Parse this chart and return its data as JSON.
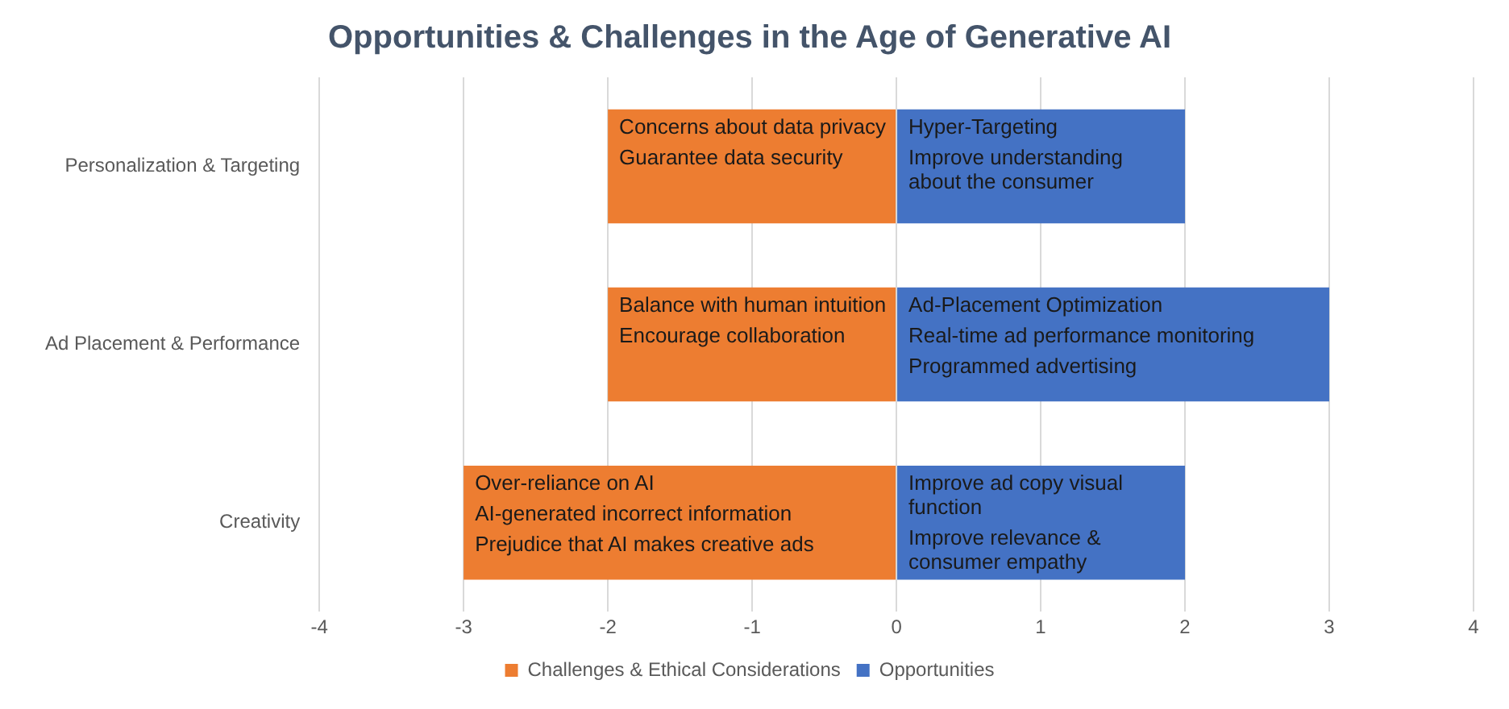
{
  "chart_data": {
    "type": "bar",
    "orientation": "horizontal",
    "stacked": true,
    "title": "Opportunities & Challenges in the Age of Generative AI",
    "categories": [
      "Personalization & Targeting",
      "Ad Placement & Performance",
      "Creativity"
    ],
    "series": [
      {
        "name": "Challenges & Ethical Considerations",
        "color": "#ed7d31",
        "values": [
          -2,
          -2,
          -3
        ],
        "value_labels": [
          "Concerns about data privacy\nGuarantee data security",
          "Balance with human intuition\nEncourage collaboration",
          "Over-reliance on AI\nAI-generated incorrect information\nPrejudice that AI makes creative ads"
        ]
      },
      {
        "name": "Opportunities",
        "color": "#4472c4",
        "values": [
          2,
          3,
          2
        ],
        "value_labels": [
          "Hyper-Targeting\nImprove understanding about the consumer",
          "Ad-Placement Optimization\nReal-time ad performance monitoring\nProgrammed advertising",
          "Improve ad copy visual function\nImprove relevance & consumer empathy"
        ]
      }
    ],
    "xlim": [
      -4,
      4
    ],
    "xticks": [
      -4,
      -3,
      -2,
      -1,
      0,
      1,
      2,
      3,
      4
    ],
    "grid": "x",
    "legend": "bottom"
  }
}
